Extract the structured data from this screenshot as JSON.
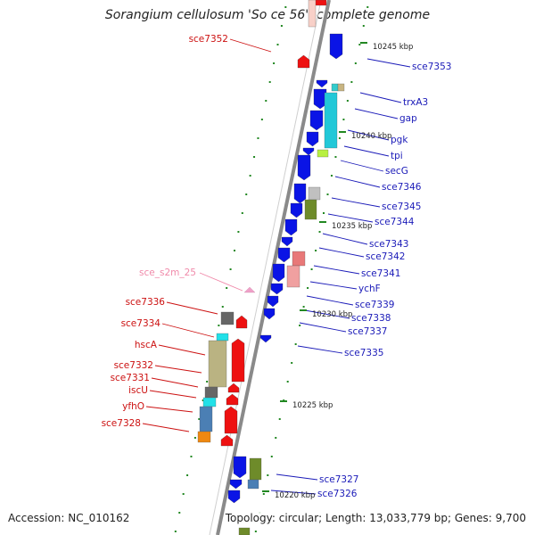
{
  "title": "Sorangium cellulosum 'So ce 56', complete genome",
  "accession": "Accession: NC_010162",
  "stats": "Topology: circular; Length: 13,033,779 bp; Genes: 9,700",
  "colors": {
    "forward_cds": "#0a14e6",
    "reverse_cds": "#ee1111",
    "backbone": "#8a8a8a",
    "label_forward": "#1a1ab8",
    "label_reverse": "#cc1111",
    "label_rna": "#f08aaa",
    "rna": "#f0a0c8",
    "gc_marks": "#228822"
  },
  "ticks": [
    {
      "label": "10245 kbp"
    },
    {
      "label": "10240 kbp"
    },
    {
      "label": "10235 kbp"
    },
    {
      "label": "10230 kbp"
    },
    {
      "label": "10225 kbp"
    },
    {
      "label": "10220 kbp"
    }
  ],
  "labels_forward": [
    "sce7353",
    "trxA3",
    "gap",
    "pgk",
    "tpi",
    "secG",
    "sce7346",
    "sce7345",
    "sce7344",
    "sce7343",
    "sce7342",
    "sce7341",
    "ychF",
    "sce7339",
    "sce7338",
    "sce7337",
    "sce7335",
    "sce7327",
    "sce7326"
  ],
  "labels_reverse": [
    "sce7352",
    "sce7336",
    "sce7334",
    "hscA",
    "sce7332",
    "sce7331",
    "iscU",
    "yfhO",
    "sce7328"
  ],
  "labels_rna": [
    "sce_s2m_25"
  ]
}
